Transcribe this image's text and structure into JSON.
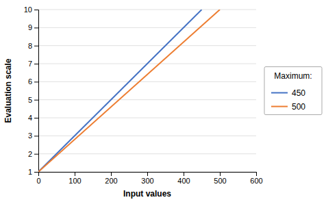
{
  "chart_data": {
    "type": "line",
    "xlabel": "Input values",
    "ylabel": "Evaluation scale",
    "xlim": [
      0,
      600
    ],
    "ylim": [
      1,
      10
    ],
    "xticks": [
      0,
      100,
      200,
      300,
      400,
      500,
      600
    ],
    "yticks": [
      1,
      2,
      3,
      4,
      5,
      6,
      7,
      8,
      9,
      10
    ],
    "series": [
      {
        "name": "450",
        "color": "#4472c4",
        "x": [
          0,
          450
        ],
        "values": [
          1,
          10
        ]
      },
      {
        "name": "500",
        "color": "#ed7d31",
        "x": [
          0,
          500
        ],
        "values": [
          1,
          10
        ]
      }
    ],
    "legend_title": "Maximum:",
    "legend": "right",
    "grid": "y"
  }
}
